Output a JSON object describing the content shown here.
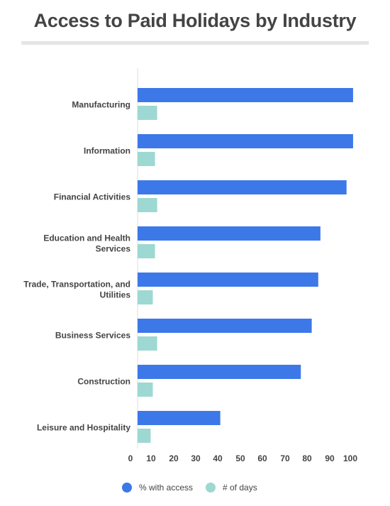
{
  "title": "Access to Paid Holidays by Industry",
  "chart_data": {
    "type": "bar",
    "orientation": "horizontal",
    "categories": [
      "Manufacturing",
      "Information",
      "Financial Activities",
      "Education and Health Services",
      "Trade, Transportation, and Utilities",
      "Business Services",
      "Construction",
      "Leisure and Hospitality"
    ],
    "series": [
      {
        "name": "% with access",
        "color": "#3c78e8",
        "values": [
          99,
          99,
          96,
          84,
          83,
          80,
          75,
          38
        ]
      },
      {
        "name": "# of days",
        "color": "#9ed8d2",
        "values": [
          9,
          8,
          9,
          8,
          7,
          9,
          7,
          6
        ]
      }
    ],
    "xticks": [
      0,
      10,
      20,
      30,
      40,
      50,
      60,
      70,
      80,
      90,
      100
    ],
    "xlim": [
      0,
      100
    ],
    "grid": false,
    "legend_position": "bottom"
  }
}
